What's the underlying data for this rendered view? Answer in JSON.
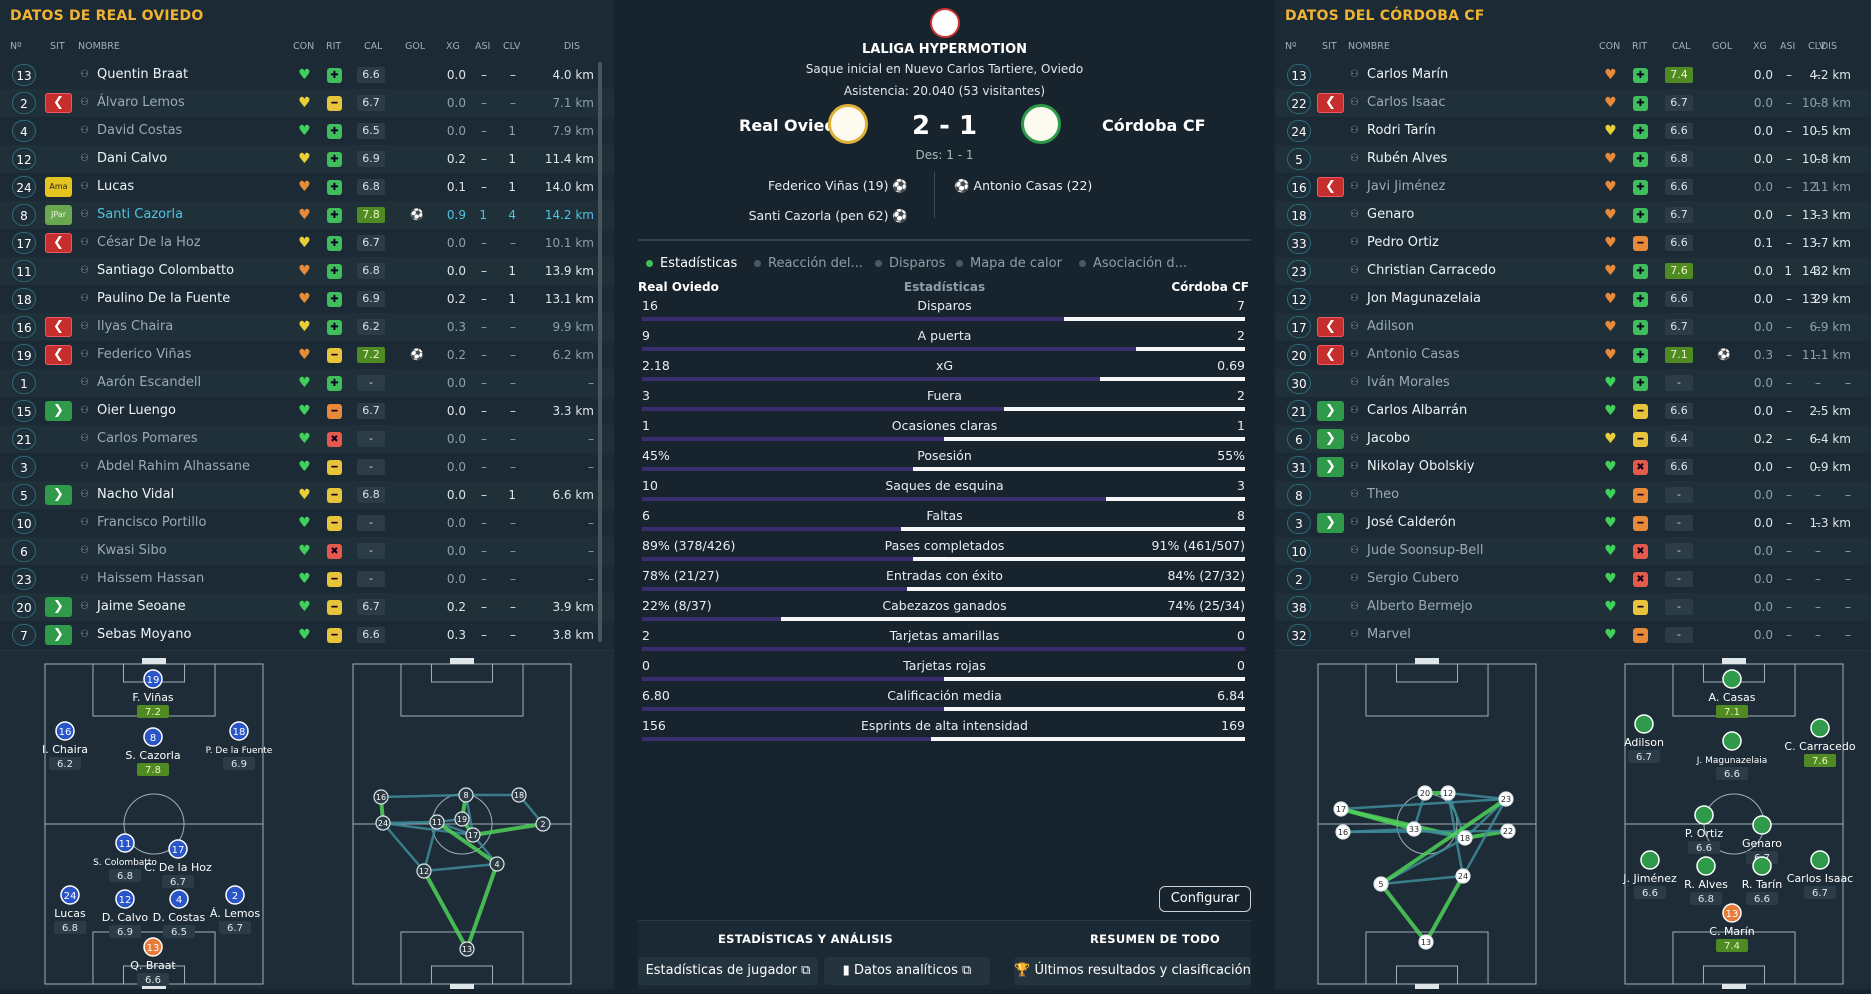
{
  "left": {
    "title": "DATOS DE REAL OVIEDO",
    "headers": [
      "Nº",
      "SIT",
      "NOMBRE",
      "CON",
      "RIT",
      "CAL",
      "GOL",
      "XG",
      "ASI",
      "CLV",
      "DIS"
    ],
    "players": [
      {
        "num": "13",
        "sit": "",
        "name": "Quentin Braat",
        "con": "g",
        "rit": "g",
        "cal": "6.6",
        "gol": "",
        "xg": "0.0",
        "asi": "–",
        "clv": "–",
        "dis": "4.0 km",
        "dim": false
      },
      {
        "num": "2",
        "sit": "out",
        "name": "Álvaro Lemos",
        "con": "y",
        "rit": "y",
        "cal": "6.7",
        "gol": "",
        "xg": "0.0",
        "asi": "–",
        "clv": "–",
        "dis": "7.1 km",
        "dim": true
      },
      {
        "num": "4",
        "sit": "",
        "name": "David Costas",
        "con": "g",
        "rit": "g",
        "cal": "6.5",
        "gol": "",
        "xg": "0.0",
        "asi": "–",
        "clv": "1",
        "dis": "7.9 km",
        "dim": true
      },
      {
        "num": "12",
        "sit": "",
        "name": "Dani Calvo",
        "con": "y",
        "rit": "g",
        "cal": "6.9",
        "gol": "",
        "xg": "0.2",
        "asi": "–",
        "clv": "1",
        "dis": "11.4 km",
        "dim": false
      },
      {
        "num": "24",
        "sit": "ama",
        "name": "Lucas",
        "con": "o",
        "rit": "g",
        "cal": "6.8",
        "gol": "",
        "xg": "0.1",
        "asi": "–",
        "clv": "1",
        "dis": "14.0 km",
        "dim": false
      },
      {
        "num": "8",
        "sit": "jpar",
        "name": "Santi Cazorla",
        "con": "o",
        "rit": "g",
        "cal": "7.8",
        "gol": "⚽",
        "xg": "0.9",
        "asi": "1",
        "clv": "4",
        "dis": "14.2 km",
        "dim": false,
        "hl": true
      },
      {
        "num": "17",
        "sit": "out",
        "name": "César De la Hoz",
        "con": "y",
        "rit": "g",
        "cal": "6.7",
        "gol": "",
        "xg": "0.0",
        "asi": "–",
        "clv": "–",
        "dis": "10.1 km",
        "dim": true
      },
      {
        "num": "11",
        "sit": "",
        "name": "Santiago Colombatto",
        "con": "o",
        "rit": "g",
        "cal": "6.8",
        "gol": "",
        "xg": "0.0",
        "asi": "–",
        "clv": "1",
        "dis": "13.9 km",
        "dim": false
      },
      {
        "num": "18",
        "sit": "",
        "name": "Paulino De la Fuente",
        "con": "o",
        "rit": "g",
        "cal": "6.9",
        "gol": "",
        "xg": "0.2",
        "asi": "–",
        "clv": "1",
        "dis": "13.1 km",
        "dim": false
      },
      {
        "num": "16",
        "sit": "out",
        "name": "Ilyas Chaira",
        "con": "y",
        "rit": "g",
        "cal": "6.2",
        "gol": "",
        "xg": "0.3",
        "asi": "–",
        "clv": "–",
        "dis": "9.9 km",
        "dim": true
      },
      {
        "num": "19",
        "sit": "out",
        "name": "Federico Viñas",
        "con": "o",
        "rit": "y",
        "cal": "7.2",
        "gol": "⚽",
        "xg": "0.2",
        "asi": "–",
        "clv": "–",
        "dis": "6.2 km",
        "dim": true
      },
      {
        "num": "1",
        "sit": "",
        "name": "Aarón Escandell",
        "con": "g",
        "rit": "g",
        "cal": "-",
        "gol": "",
        "xg": "0.0",
        "asi": "–",
        "clv": "–",
        "dis": "–",
        "dim": true
      },
      {
        "num": "15",
        "sit": "in",
        "name": "Oier Luengo",
        "con": "g",
        "rit": "o",
        "cal": "6.7",
        "gol": "",
        "xg": "0.0",
        "asi": "–",
        "clv": "–",
        "dis": "3.3 km",
        "dim": false
      },
      {
        "num": "21",
        "sit": "",
        "name": "Carlos Pomares",
        "con": "g",
        "rit": "r",
        "cal": "-",
        "gol": "",
        "xg": "0.0",
        "asi": "–",
        "clv": "–",
        "dis": "–",
        "dim": true
      },
      {
        "num": "3",
        "sit": "",
        "name": "Abdel Rahim Alhassane",
        "con": "g",
        "rit": "y",
        "cal": "-",
        "gol": "",
        "xg": "0.0",
        "asi": "–",
        "clv": "–",
        "dis": "–",
        "dim": true
      },
      {
        "num": "5",
        "sit": "in",
        "name": "Nacho Vidal",
        "con": "y",
        "rit": "y",
        "cal": "6.8",
        "gol": "",
        "xg": "0.0",
        "asi": "–",
        "clv": "1",
        "dis": "6.6 km",
        "dim": false
      },
      {
        "num": "10",
        "sit": "",
        "name": "Francisco Portillo",
        "con": "g",
        "rit": "y",
        "cal": "-",
        "gol": "",
        "xg": "0.0",
        "asi": "–",
        "clv": "–",
        "dis": "–",
        "dim": true
      },
      {
        "num": "6",
        "sit": "",
        "name": "Kwasi Sibo",
        "con": "g",
        "rit": "r",
        "cal": "-",
        "gol": "",
        "xg": "0.0",
        "asi": "–",
        "clv": "–",
        "dis": "–",
        "dim": true
      },
      {
        "num": "23",
        "sit": "",
        "name": "Haissem Hassan",
        "con": "g",
        "rit": "y",
        "cal": "-",
        "gol": "",
        "xg": "0.0",
        "asi": "–",
        "clv": "–",
        "dis": "–",
        "dim": true
      },
      {
        "num": "20",
        "sit": "in",
        "name": "Jaime Seoane",
        "con": "g",
        "rit": "y",
        "cal": "6.7",
        "gol": "",
        "xg": "0.2",
        "asi": "–",
        "clv": "–",
        "dis": "3.9 km",
        "dim": false
      },
      {
        "num": "7",
        "sit": "in",
        "name": "Sebas Moyano",
        "con": "g",
        "rit": "y",
        "cal": "6.6",
        "gol": "",
        "xg": "0.3",
        "asi": "–",
        "clv": "–",
        "dis": "3.8 km",
        "dim": false
      }
    ],
    "lineup": [
      {
        "num": "19",
        "name": "F. Viñas",
        "rating": "7.2",
        "hi": true
      },
      {
        "num": "16",
        "name": "I. Chaira",
        "rating": "6.2"
      },
      {
        "num": "8",
        "name": "S. Cazorla",
        "rating": "7.8",
        "hi": true
      },
      {
        "num": "18",
        "name": "P. De la Fuente",
        "rating": "6.9"
      },
      {
        "num": "11",
        "name": "S. Colombatto",
        "rating": "6.8"
      },
      {
        "num": "17",
        "name": "C. De la Hoz",
        "rating": "6.7"
      },
      {
        "num": "24",
        "name": "Lucas",
        "rating": "6.8"
      },
      {
        "num": "12",
        "name": "D. Calvo",
        "rating": "6.9"
      },
      {
        "num": "4",
        "name": "D. Costas",
        "rating": "6.5"
      },
      {
        "num": "2",
        "name": "Á. Lemos",
        "rating": "6.7"
      },
      {
        "num": "13",
        "name": "Q. Braat",
        "rating": "6.6",
        "gk": true
      }
    ],
    "passnodes": [
      "16",
      "24",
      "11",
      "19",
      "8",
      "18",
      "17",
      "2",
      "12",
      "4",
      "13"
    ]
  },
  "right": {
    "title": "DATOS DEL CÓRDOBA CF",
    "headers": [
      "Nº",
      "SIT",
      "NOMBRE",
      "CON",
      "RIT",
      "CAL",
      "GOL",
      "XG",
      "ASI",
      "CLV",
      "DIS"
    ],
    "players": [
      {
        "num": "13",
        "sit": "",
        "name": "Carlos Marín",
        "con": "o",
        "rit": "g",
        "cal": "7.4",
        "gol": "",
        "xg": "0.0",
        "asi": "–",
        "clv": "–",
        "dis": "4.2 km",
        "dim": false,
        "calhi": true
      },
      {
        "num": "22",
        "sit": "out",
        "name": "Carlos Isaac",
        "con": "o",
        "rit": "g",
        "cal": "6.7",
        "gol": "",
        "xg": "0.0",
        "asi": "–",
        "clv": "–",
        "dis": "10.8 km",
        "dim": true
      },
      {
        "num": "24",
        "sit": "",
        "name": "Rodri Tarín",
        "con": "y",
        "rit": "g",
        "cal": "6.6",
        "gol": "",
        "xg": "0.0",
        "asi": "–",
        "clv": "–",
        "dis": "10.5 km",
        "dim": false
      },
      {
        "num": "5",
        "sit": "",
        "name": "Rubén Alves",
        "con": "o",
        "rit": "g",
        "cal": "6.8",
        "gol": "",
        "xg": "0.0",
        "asi": "–",
        "clv": "–",
        "dis": "10.8 km",
        "dim": false
      },
      {
        "num": "16",
        "sit": "out",
        "name": "Javi Jiménez",
        "con": "o",
        "rit": "g",
        "cal": "6.6",
        "gol": "",
        "xg": "0.0",
        "asi": "–",
        "clv": "1",
        "dis": "12.1 km",
        "dim": true
      },
      {
        "num": "18",
        "sit": "",
        "name": "Genaro",
        "con": "o",
        "rit": "g",
        "cal": "6.7",
        "gol": "",
        "xg": "0.0",
        "asi": "–",
        "clv": "–",
        "dis": "13.3 km",
        "dim": false
      },
      {
        "num": "33",
        "sit": "",
        "name": "Pedro Ortiz",
        "con": "o",
        "rit": "o",
        "cal": "6.6",
        "gol": "",
        "xg": "0.1",
        "asi": "–",
        "clv": "–",
        "dis": "13.7 km",
        "dim": false
      },
      {
        "num": "23",
        "sit": "",
        "name": "Christian Carracedo",
        "con": "o",
        "rit": "g",
        "cal": "7.6",
        "gol": "",
        "xg": "0.0",
        "asi": "1",
        "clv": "3",
        "dis": "14.2 km",
        "dim": false,
        "calhi": true
      },
      {
        "num": "12",
        "sit": "",
        "name": "Jon Magunazelaia",
        "con": "o",
        "rit": "g",
        "cal": "6.6",
        "gol": "",
        "xg": "0.0",
        "asi": "–",
        "clv": "2",
        "dis": "13.9 km",
        "dim": false
      },
      {
        "num": "17",
        "sit": "out",
        "name": "Adilson",
        "con": "o",
        "rit": "g",
        "cal": "6.7",
        "gol": "",
        "xg": "0.0",
        "asi": "–",
        "clv": "–",
        "dis": "6.9 km",
        "dim": true
      },
      {
        "num": "20",
        "sit": "out",
        "name": "Antonio Casas",
        "con": "o",
        "rit": "g",
        "cal": "7.1",
        "gol": "⚽",
        "xg": "0.3",
        "asi": "–",
        "clv": "–",
        "dis": "11.1 km",
        "dim": true,
        "calhi": true
      },
      {
        "num": "30",
        "sit": "",
        "name": "Iván Morales",
        "con": "g",
        "rit": "g",
        "cal": "-",
        "gol": "",
        "xg": "0.0",
        "asi": "–",
        "clv": "–",
        "dis": "–",
        "dim": true
      },
      {
        "num": "21",
        "sit": "in",
        "name": "Carlos Albarrán",
        "con": "g",
        "rit": "y",
        "cal": "6.6",
        "gol": "",
        "xg": "0.0",
        "asi": "–",
        "clv": "–",
        "dis": "2.5 km",
        "dim": false
      },
      {
        "num": "6",
        "sit": "in",
        "name": "Jacobo",
        "con": "y",
        "rit": "y",
        "cal": "6.4",
        "gol": "",
        "xg": "0.2",
        "asi": "–",
        "clv": "–",
        "dis": "6.4 km",
        "dim": false
      },
      {
        "num": "31",
        "sit": "in",
        "name": "Nikolay Obolskiy",
        "con": "g",
        "rit": "r",
        "cal": "6.6",
        "gol": "",
        "xg": "0.0",
        "asi": "–",
        "clv": "–",
        "dis": "0.9 km",
        "dim": false
      },
      {
        "num": "8",
        "sit": "",
        "name": "Theo",
        "con": "g",
        "rit": "o",
        "cal": "-",
        "gol": "",
        "xg": "0.0",
        "asi": "–",
        "clv": "–",
        "dis": "–",
        "dim": true
      },
      {
        "num": "3",
        "sit": "in",
        "name": "José Calderón",
        "con": "g",
        "rit": "o",
        "cal": "-",
        "gol": "",
        "xg": "0.0",
        "asi": "–",
        "clv": "–",
        "dis": "1.3 km",
        "dim": false
      },
      {
        "num": "10",
        "sit": "",
        "name": "Jude Soonsup-Bell",
        "con": "g",
        "rit": "r",
        "cal": "-",
        "gol": "",
        "xg": "0.0",
        "asi": "–",
        "clv": "–",
        "dis": "–",
        "dim": true
      },
      {
        "num": "2",
        "sit": "",
        "name": "Sergio Cubero",
        "con": "g",
        "rit": "r",
        "cal": "-",
        "gol": "",
        "xg": "0.0",
        "asi": "–",
        "clv": "–",
        "dis": "–",
        "dim": true
      },
      {
        "num": "38",
        "sit": "",
        "name": "Alberto Bermejo",
        "con": "g",
        "rit": "y",
        "cal": "-",
        "gol": "",
        "xg": "0.0",
        "asi": "–",
        "clv": "–",
        "dis": "–",
        "dim": true
      },
      {
        "num": "32",
        "sit": "",
        "name": "Marvel",
        "con": "g",
        "rit": "o",
        "cal": "-",
        "gol": "",
        "xg": "0.0",
        "asi": "–",
        "clv": "–",
        "dis": "–",
        "dim": true
      }
    ],
    "lineup": [
      {
        "num": "",
        "name": "A. Casas",
        "rating": "7.1",
        "hi": true
      },
      {
        "num": "",
        "name": "Adilson",
        "rating": "6.7"
      },
      {
        "num": "",
        "name": "J. Magunazelaia",
        "rating": "6.6"
      },
      {
        "num": "",
        "name": "C. Carracedo",
        "rating": "7.6",
        "hi": true
      },
      {
        "num": "",
        "name": "P. Ortiz",
        "rating": "6.6"
      },
      {
        "num": "",
        "name": "Genaro",
        "rating": "6.7"
      },
      {
        "num": "",
        "name": "J. Jiménez",
        "rating": "6.6"
      },
      {
        "num": "",
        "name": "R. Alves",
        "rating": "6.8"
      },
      {
        "num": "",
        "name": "R. Tarín",
        "rating": "6.6"
      },
      {
        "num": "",
        "name": "Carlos Isaac",
        "rating": "6.7"
      },
      {
        "num": "13",
        "name": "C. Marín",
        "rating": "7.4",
        "hi": true,
        "gk": true
      }
    ],
    "passnodes": [
      "20",
      "12",
      "23",
      "17",
      "33",
      "16",
      "18",
      "22",
      "24",
      "5",
      "13"
    ]
  },
  "center": {
    "competition": "LALIGA HYPERMOTION",
    "kickoff": "Saque inicial en Nuevo Carlos Tartiere, Oviedo",
    "attendance": "Asistencia: 20.040 (53 visitantes)",
    "home": "Real Oviedo",
    "away": "Córdoba CF",
    "score": "2 - 1",
    "halftime": "Des: 1 - 1",
    "home_scorers": [
      "Federico Viñas (19)",
      "Santi Cazorla (pen 62)"
    ],
    "away_scorers": [
      "Antonio Casas (22)"
    ],
    "tabs": [
      "Estadísticas",
      "Reacción del...",
      "Disparos",
      "Mapa de calor",
      "Asociación d..."
    ],
    "stats_header": {
      "home": "Real Oviedo",
      "mid": "Estadísticas",
      "away": "Córdoba CF"
    },
    "stats": [
      {
        "label": "Disparos",
        "home": "16",
        "away": "7",
        "share": 0.3
      },
      {
        "label": "A puerta",
        "home": "9",
        "away": "2",
        "share": 0.18
      },
      {
        "label": "xG",
        "home": "2.18",
        "away": "0.69",
        "share": 0.24
      },
      {
        "label": "Fuera",
        "home": "3",
        "away": "2",
        "share": 0.4
      },
      {
        "label": "Ocasiones claras",
        "home": "1",
        "away": "1",
        "share": 0.5
      },
      {
        "label": "Posesión",
        "home": "45%",
        "away": "55%",
        "share": 0.55
      },
      {
        "label": "Saques de esquina",
        "home": "10",
        "away": "3",
        "share": 0.23
      },
      {
        "label": "Faltas",
        "home": "6",
        "away": "8",
        "share": 0.57
      },
      {
        "label": "Pases completados",
        "home": "89% (378/426)",
        "away": "91% (461/507)",
        "share": 0.55
      },
      {
        "label": "Entradas con éxito",
        "home": "78% (21/27)",
        "away": "84% (27/32)",
        "share": 0.56
      },
      {
        "label": "Cabezazos ganados",
        "home": "22% (8/37)",
        "away": "74% (25/34)",
        "share": 0.77
      },
      {
        "label": "Tarjetas amarillas",
        "home": "2",
        "away": "0",
        "share": 0.0
      },
      {
        "label": "Tarjetas rojas",
        "home": "0",
        "away": "0",
        "share": 0.5
      },
      {
        "label": "Calificación media",
        "home": "6.80",
        "away": "6.84",
        "share": 0.5
      },
      {
        "label": "Esprints de alta intensidad",
        "home": "156",
        "away": "169",
        "share": 0.52
      }
    ],
    "configure": "Configurar",
    "bottom": {
      "left_title": "ESTADÍSTICAS Y ANÁLISIS",
      "right_title": "RESUMEN DE TODO",
      "btn_players": "Estadísticas de jugador",
      "btn_analytics": "Datos analíticos",
      "btn_results": "Últimos resultados y clasificación"
    }
  }
}
